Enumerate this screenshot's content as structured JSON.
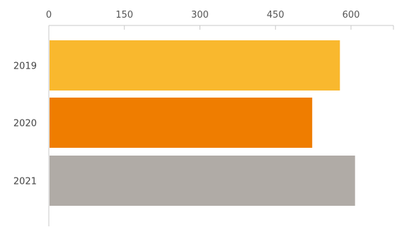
{
  "chart_data": {
    "type": "bar",
    "orientation": "horizontal",
    "categories": [
      "2019",
      "2020",
      "2021"
    ],
    "values": [
      578,
      523,
      608
    ],
    "colors": [
      "#f9b82e",
      "#ef7d00",
      "#b0aba6"
    ],
    "xlim": [
      0,
      680
    ],
    "x_ticks": [
      "0",
      "150",
      "300",
      "450",
      "600"
    ],
    "x_axis_position": "top",
    "grid": false,
    "legend": "none",
    "title": "",
    "xlabel": "",
    "ylabel": ""
  }
}
